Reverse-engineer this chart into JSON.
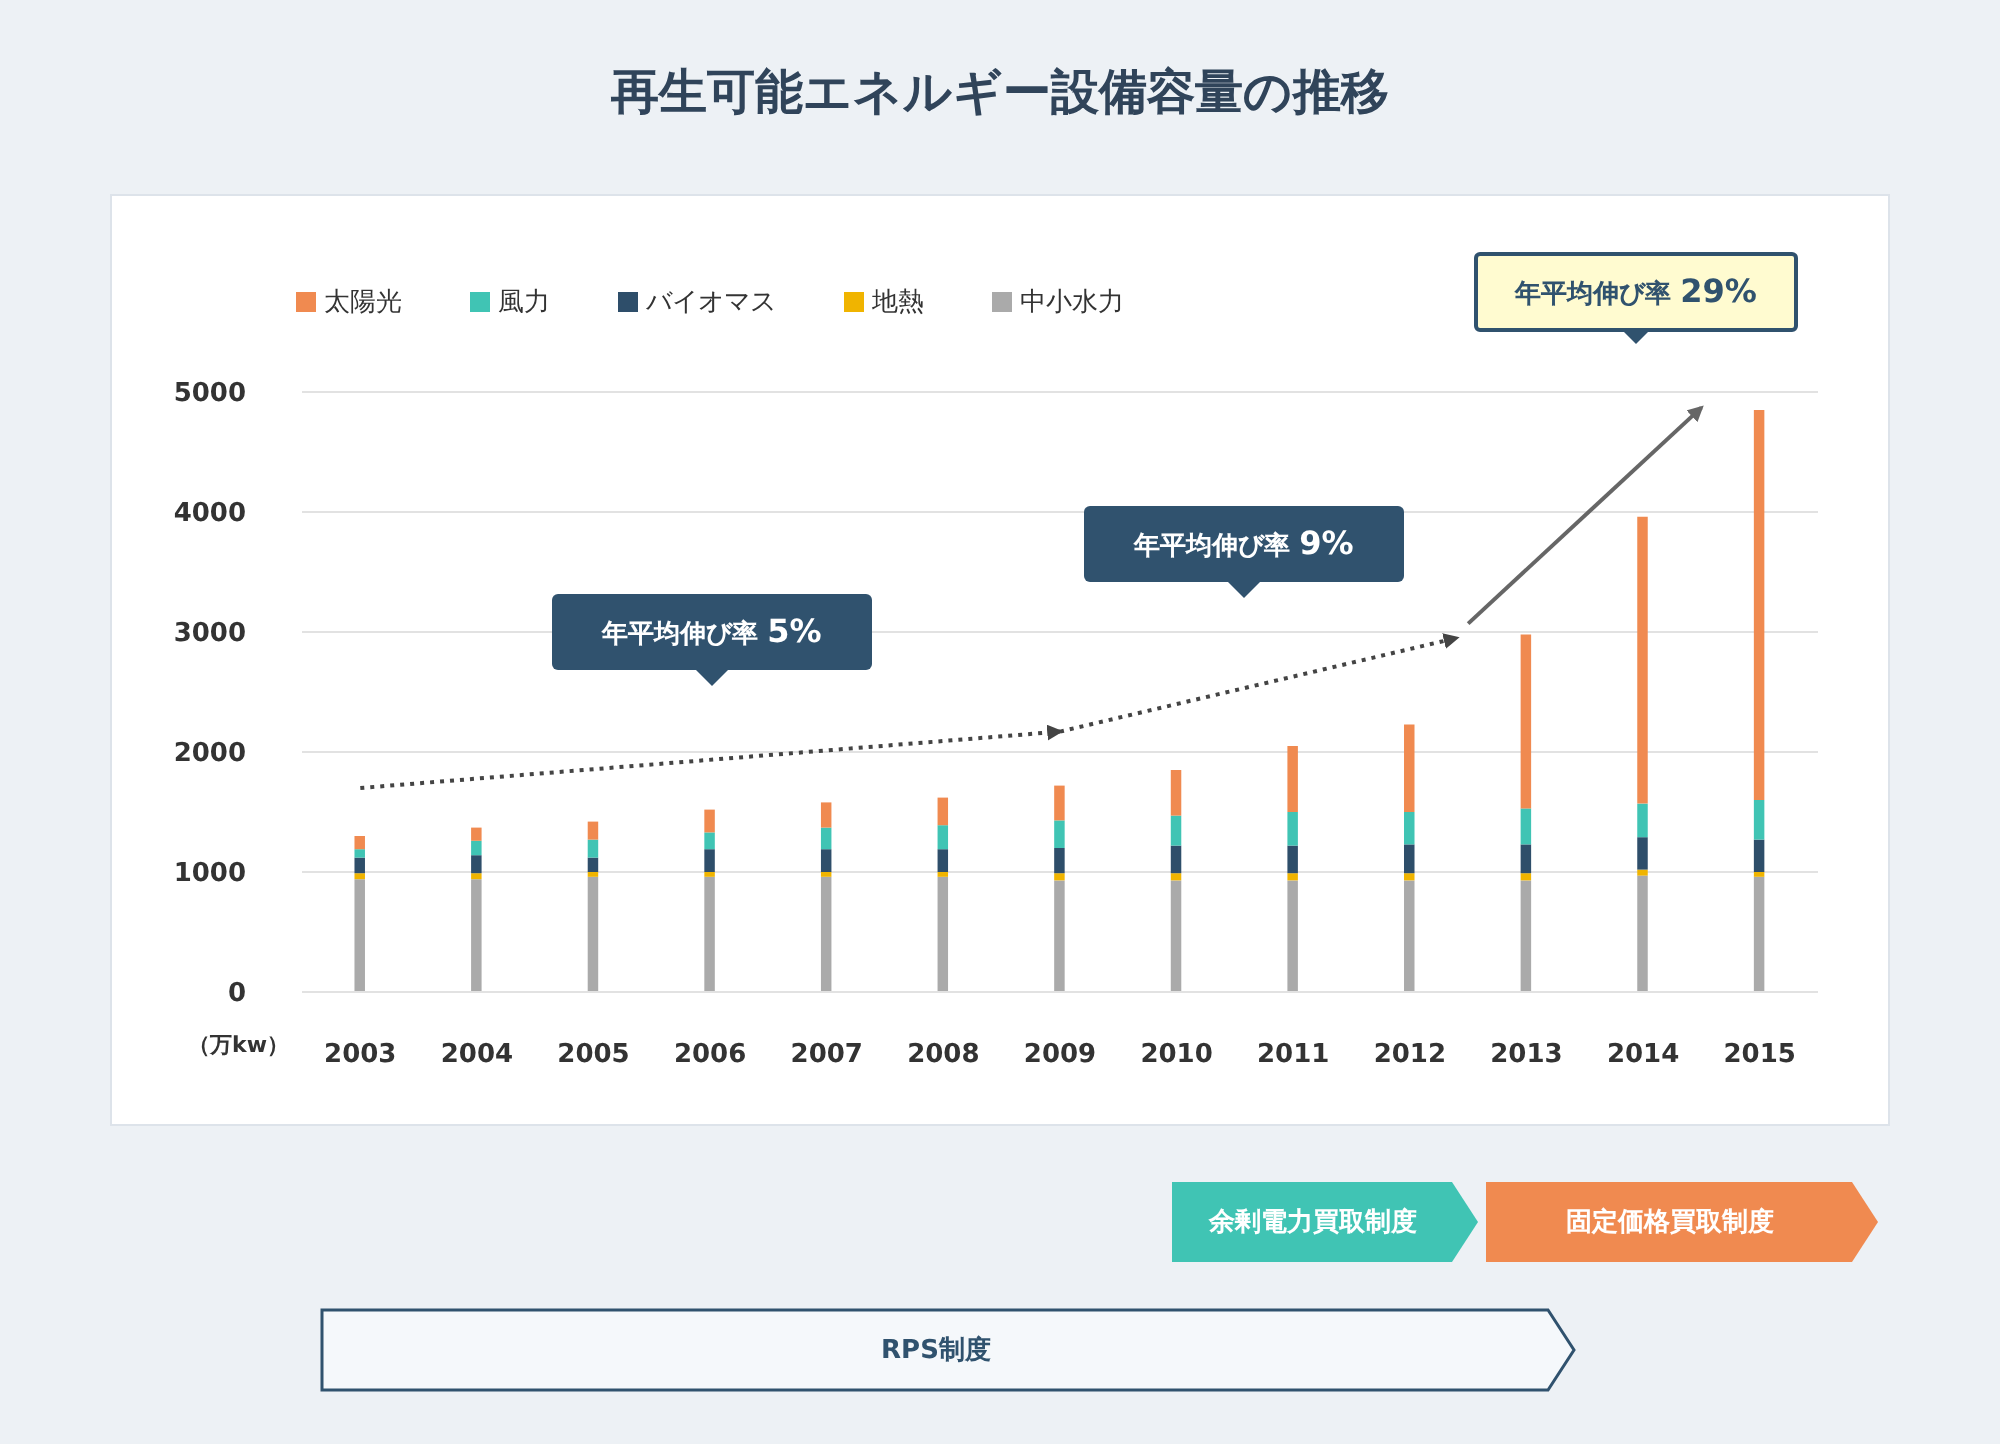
{
  "chart_data": {
    "type": "bar",
    "title": "再生可能エネルギー設備容量の推移",
    "ylabel": "（万kw）",
    "stacked": true,
    "x": [
      2003,
      2004,
      2005,
      2006,
      2007,
      2008,
      2009,
      2010,
      2011,
      2012,
      2013,
      2014,
      2015
    ],
    "xlim": [
      2002.5,
      2015.5
    ],
    "xticks": [
      2003,
      2004,
      2005,
      2006,
      2007,
      2008,
      2009,
      2010,
      2011,
      2012,
      2013,
      2014,
      2015
    ],
    "ylim": [
      0,
      5000
    ],
    "yticks": [
      0,
      1000,
      2000,
      3000,
      4000,
      5000
    ],
    "grid": "y",
    "legend": "top left",
    "series": [
      {
        "name": "中小水力",
        "color": "#aaaaaa",
        "values": [
          940,
          940,
          960,
          960,
          960,
          960,
          930,
          930,
          930,
          930,
          930,
          970,
          960
        ]
      },
      {
        "name": "地熱",
        "color": "#f0b400",
        "values": [
          50,
          50,
          40,
          40,
          40,
          40,
          60,
          60,
          60,
          60,
          60,
          50,
          40
        ]
      },
      {
        "name": "バイオマス",
        "color": "#2e4e6a",
        "values": [
          130,
          150,
          120,
          190,
          190,
          190,
          210,
          230,
          230,
          240,
          240,
          270,
          270
        ]
      },
      {
        "name": "風力",
        "color": "#40c4b4",
        "values": [
          70,
          120,
          150,
          140,
          180,
          200,
          230,
          250,
          280,
          270,
          300,
          280,
          330
        ]
      },
      {
        "name": "太陽光",
        "color": "#f08a50",
        "values": [
          110,
          110,
          150,
          190,
          210,
          230,
          290,
          380,
          550,
          730,
          1450,
          2390,
          3250
        ]
      },
      {
        "type": "line",
        "color": "#444444",
        "line_style": "dotted",
        "x": [
          2003,
          2009
        ],
        "values": [
          1700,
          2170
        ]
      },
      {
        "type": "line",
        "color": "#444444",
        "line_style": "dotted",
        "x": [
          2009,
          2012.4
        ],
        "values": [
          2170,
          2950
        ]
      },
      {
        "type": "line",
        "color": "#666666",
        "line_style": "solid",
        "x": [
          2012.5,
          2014.5
        ],
        "values": [
          3070,
          4870
        ]
      }
    ],
    "annotations": [
      "年平均伸び率 5%",
      "年平均伸び率 9%",
      "年平均伸び率 29%",
      "余剰電力買取制度",
      "固定価格買取制度",
      "RPS制度"
    ]
  }
}
